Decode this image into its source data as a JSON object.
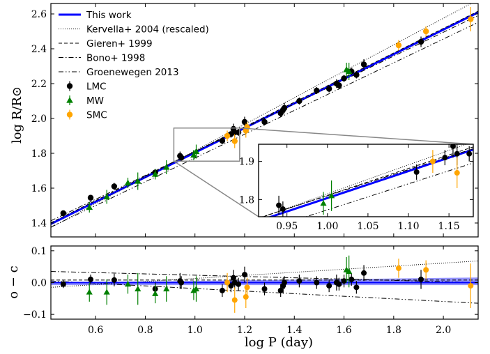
{
  "chart_data": [
    {
      "type": "scatter",
      "panel": "main",
      "title": "",
      "xlabel": "",
      "ylabel": "log R/R⊙",
      "xlim": [
        0.42,
        2.14
      ],
      "ylim": [
        1.32,
        2.66
      ],
      "grid": false,
      "legend_position": "top-left",
      "xticks": [
        {
          "v": 0.6,
          "label": ""
        },
        {
          "v": 0.8,
          "label": ""
        },
        {
          "v": 1.0,
          "label": ""
        },
        {
          "v": 1.2,
          "label": ""
        },
        {
          "v": 1.4,
          "label": ""
        },
        {
          "v": 1.6,
          "label": ""
        },
        {
          "v": 1.8,
          "label": ""
        },
        {
          "v": 2.0,
          "label": ""
        }
      ],
      "yticks": [
        {
          "v": 1.4,
          "label": "1.4"
        },
        {
          "v": 1.6,
          "label": "1.6"
        },
        {
          "v": 1.8,
          "label": "1.8"
        },
        {
          "v": 2.0,
          "label": "2.0"
        },
        {
          "v": 2.2,
          "label": "2.2"
        },
        {
          "v": 2.4,
          "label": "2.4"
        },
        {
          "v": 2.6,
          "label": "2.6"
        }
      ],
      "lines": [
        {
          "name": "This work",
          "style": "solid",
          "color": "#0000ff",
          "width": 3.0,
          "intercept": 1.098,
          "slope": 0.706
        },
        {
          "name": "Kervella+ 2004 (rescaled)",
          "style": "dotted",
          "color": "#000000",
          "width": 1.0,
          "intercept": 1.055,
          "slope": 0.76
        },
        {
          "name": "Gieren+ 1999",
          "style": "dashed",
          "color": "#000000",
          "width": 1.0,
          "intercept": 1.105,
          "slope": 0.706
        },
        {
          "name": "Bono+ 1998",
          "style": "dashdot",
          "color": "#000000",
          "width": 1.0,
          "intercept": 1.125,
          "slope": 0.685
        },
        {
          "name": "Groenewegen 2013",
          "style": "dashdotdot",
          "color": "#000000",
          "width": 1.0,
          "intercept": 1.09,
          "slope": 0.683
        }
      ],
      "series": [
        {
          "name": "LMC",
          "marker": "circle",
          "color": "#000000",
          "points": [
            [
              0.47,
              1.456,
              0.015
            ],
            [
              0.58,
              1.545,
              0.015
            ],
            [
              0.675,
              1.61,
              0.02
            ],
            [
              0.84,
              1.69,
              0.02
            ],
            [
              0.94,
              1.785,
              0.025
            ],
            [
              0.945,
              1.775,
              0.02
            ],
            [
              1.11,
              1.872,
              0.02
            ],
            [
              1.145,
              1.91,
              0.02
            ],
            [
              1.155,
              1.94,
              0.03
            ],
            [
              1.16,
              1.92,
              0.03
            ],
            [
              1.175,
              1.92,
              0.02
            ],
            [
              1.2,
              1.98,
              0.03
            ],
            [
              1.28,
              1.98,
              0.02
            ],
            [
              1.345,
              2.03,
              0.02
            ],
            [
              1.355,
              2.05,
              0.025
            ],
            [
              1.36,
              2.06,
              0.03
            ],
            [
              1.42,
              2.1,
              0.02
            ],
            [
              1.49,
              2.16,
              0.02
            ],
            [
              1.54,
              2.17,
              0.02
            ],
            [
              1.57,
              2.2,
              0.025
            ],
            [
              1.6,
              2.23,
              0.02
            ],
            [
              1.65,
              2.25,
              0.02
            ],
            [
              1.68,
              2.31,
              0.03
            ],
            [
              1.91,
              2.44,
              0.03
            ],
            [
              1.58,
              2.19,
              0.02
            ],
            [
              1.63,
              2.27,
              0.02
            ]
          ]
        },
        {
          "name": "MW",
          "marker": "triangle",
          "color": "#008000",
          "points": [
            [
              0.575,
              1.49,
              0.03
            ],
            [
              0.645,
              1.55,
              0.04
            ],
            [
              0.73,
              1.63,
              0.03
            ],
            [
              0.77,
              1.64,
              0.05
            ],
            [
              0.84,
              1.68,
              0.03
            ],
            [
              0.885,
              1.72,
              0.04
            ],
            [
              0.995,
              1.79,
              0.03
            ],
            [
              1.005,
              1.81,
              0.04
            ],
            [
              1.61,
              2.28,
              0.04
            ],
            [
              1.62,
              2.27,
              0.05
            ]
          ]
        },
        {
          "name": "SMC",
          "marker": "circle",
          "color": "#ffa500",
          "points": [
            [
              1.13,
              1.9,
              0.03
            ],
            [
              1.16,
              1.87,
              0.04
            ],
            [
              1.205,
              1.93,
              0.04
            ],
            [
              1.21,
              1.95,
              0.03
            ],
            [
              1.82,
              2.42,
              0.03
            ],
            [
              1.93,
              2.5,
              0.03
            ],
            [
              2.11,
              2.57,
              0.07
            ]
          ]
        }
      ]
    },
    {
      "type": "scatter",
      "panel": "inset",
      "title": "",
      "xlim": [
        0.915,
        1.18
      ],
      "ylim": [
        1.755,
        1.945
      ],
      "xticks": [
        {
          "v": 0.95,
          "label": "0.95"
        },
        {
          "v": 1.0,
          "label": "1.00"
        },
        {
          "v": 1.05,
          "label": "1.05"
        },
        {
          "v": 1.1,
          "label": "1.10"
        },
        {
          "v": 1.15,
          "label": "1.15"
        }
      ],
      "yticks": [
        {
          "v": 1.8,
          "label": "1.8"
        },
        {
          "v": 1.9,
          "label": "1.9"
        }
      ]
    },
    {
      "type": "scatter",
      "panel": "residual",
      "title": "",
      "xlabel": "log P (day)",
      "ylabel": "o − c",
      "xlim": [
        0.42,
        2.14
      ],
      "ylim": [
        -0.115,
        0.115
      ],
      "grid": false,
      "xticks": [
        {
          "v": 0.6,
          "label": "0.6"
        },
        {
          "v": 0.8,
          "label": "0.8"
        },
        {
          "v": 1.0,
          "label": "1.0"
        },
        {
          "v": 1.2,
          "label": "1.2"
        },
        {
          "v": 1.4,
          "label": "1.4"
        },
        {
          "v": 1.6,
          "label": "1.6"
        },
        {
          "v": 1.8,
          "label": "1.8"
        },
        {
          "v": 2.0,
          "label": "2.0"
        }
      ],
      "yticks": [
        {
          "v": 0.1,
          "label": "0.1"
        },
        {
          "v": 0.0,
          "label": "0.0"
        },
        {
          "v": -0.1,
          "label": "−0.1"
        }
      ],
      "band": {
        "name": "This work uncertainty",
        "color": "#8080ff",
        "center": [
          [
            0.42,
            -0.004
          ],
          [
            2.14,
            0.004
          ]
        ],
        "half_width": [
          [
            0.42,
            0.004
          ],
          [
            2.14,
            0.012
          ]
        ]
      },
      "series": [
        {
          "name": "LMC",
          "marker": "circle",
          "color": "#000000",
          "points": [
            [
              0.47,
              -0.005,
              0.012
            ],
            [
              0.58,
              0.01,
              0.015
            ],
            [
              0.675,
              0.008,
              0.02
            ],
            [
              0.84,
              -0.02,
              0.02
            ],
            [
              0.94,
              0.005,
              0.025
            ],
            [
              0.945,
              0.0,
              0.02
            ],
            [
              1.11,
              -0.025,
              0.02
            ],
            [
              1.145,
              -0.01,
              0.02
            ],
            [
              1.155,
              0.015,
              0.025
            ],
            [
              1.16,
              0.0,
              0.02
            ],
            [
              1.175,
              -0.005,
              0.02
            ],
            [
              1.2,
              0.025,
              0.025
            ],
            [
              1.28,
              -0.02,
              0.02
            ],
            [
              1.345,
              -0.025,
              0.02
            ],
            [
              1.355,
              -0.01,
              0.025
            ],
            [
              1.36,
              0.0,
              0.02
            ],
            [
              1.42,
              0.005,
              0.02
            ],
            [
              1.49,
              0.0,
              0.02
            ],
            [
              1.54,
              -0.01,
              0.02
            ],
            [
              1.57,
              0.0,
              0.025
            ],
            [
              1.6,
              0.005,
              0.02
            ],
            [
              1.65,
              -0.015,
              0.02
            ],
            [
              1.68,
              0.03,
              0.025
            ],
            [
              1.91,
              0.01,
              0.03
            ],
            [
              1.58,
              -0.005,
              0.02
            ],
            [
              1.63,
              0.01,
              0.02
            ]
          ]
        },
        {
          "name": "MW",
          "marker": "triangle",
          "color": "#008000",
          "points": [
            [
              0.575,
              -0.03,
              0.03
            ],
            [
              0.645,
              -0.03,
              0.04
            ],
            [
              0.73,
              -0.005,
              0.03
            ],
            [
              0.77,
              -0.02,
              0.05
            ],
            [
              0.84,
              -0.035,
              0.03
            ],
            [
              0.885,
              -0.02,
              0.04
            ],
            [
              0.995,
              -0.025,
              0.03
            ],
            [
              1.005,
              -0.02,
              0.04
            ],
            [
              1.61,
              0.04,
              0.04
            ],
            [
              1.62,
              0.035,
              0.05
            ]
          ]
        },
        {
          "name": "SMC",
          "marker": "circle",
          "color": "#ffa500",
          "points": [
            [
              1.13,
              0.0,
              0.03
            ],
            [
              1.16,
              -0.055,
              0.04
            ],
            [
              1.205,
              -0.045,
              0.035
            ],
            [
              1.21,
              -0.015,
              0.03
            ],
            [
              1.82,
              0.045,
              0.03
            ],
            [
              1.93,
              0.04,
              0.03
            ],
            [
              2.11,
              -0.01,
              0.07
            ]
          ]
        }
      ],
      "lines": [
        {
          "name": "Kervella+ 2004 (rescaled)",
          "style": "dotted",
          "points": [
            [
              0.42,
              -0.015
            ],
            [
              2.14,
              0.068
            ]
          ]
        },
        {
          "name": "Gieren+ 1999",
          "style": "dashed",
          "points": [
            [
              0.42,
              0.008
            ],
            [
              2.14,
              0.008
            ]
          ]
        },
        {
          "name": "Bono+ 1998",
          "style": "dashdot",
          "points": [
            [
              0.42,
              0.035
            ],
            [
              2.14,
              0.0
            ]
          ]
        },
        {
          "name": "Groenewegen 2013",
          "style": "dashdotdot",
          "points": [
            [
              0.42,
              0.005
            ],
            [
              2.14,
              -0.065
            ]
          ]
        }
      ]
    }
  ]
}
